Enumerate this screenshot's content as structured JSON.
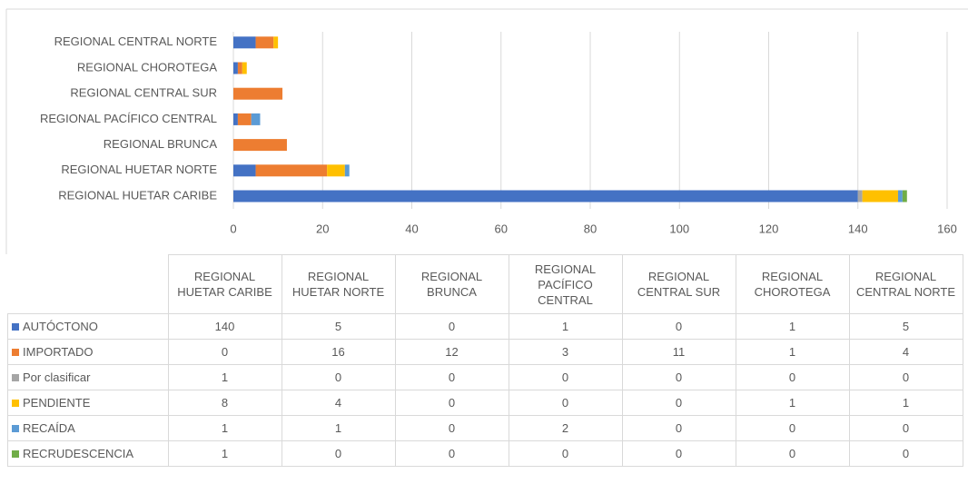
{
  "chart_data": {
    "type": "stacked_bar_horizontal",
    "categories": [
      "REGIONAL HUETAR CARIBE",
      "REGIONAL HUETAR NORTE",
      "REGIONAL BRUNCA",
      "REGIONAL PACÍFICO CENTRAL",
      "REGIONAL CENTRAL SUR",
      "REGIONAL CHOROTEGA",
      "REGIONAL CENTRAL NORTE"
    ],
    "series": [
      {
        "name": "AUTÓCTONO",
        "color": "#4472c4",
        "values": [
          140,
          5,
          0,
          1,
          0,
          1,
          5
        ]
      },
      {
        "name": "IMPORTADO",
        "color": "#ed7d31",
        "values": [
          0,
          16,
          12,
          3,
          11,
          1,
          4
        ]
      },
      {
        "name": "Por clasificar",
        "color": "#a5a5a5",
        "values": [
          1,
          0,
          0,
          0,
          0,
          0,
          0
        ]
      },
      {
        "name": "PENDIENTE",
        "color": "#ffc000",
        "values": [
          8,
          4,
          0,
          0,
          0,
          1,
          1
        ]
      },
      {
        "name": "RECAÍDA",
        "color": "#5b9bd5",
        "values": [
          1,
          1,
          0,
          2,
          0,
          0,
          0
        ]
      },
      {
        "name": "RECRUDESCENCIA",
        "color": "#70ad47",
        "values": [
          1,
          0,
          0,
          0,
          0,
          0,
          0
        ]
      }
    ],
    "xlim": [
      0,
      160
    ],
    "xticks": [
      0,
      20,
      40,
      60,
      80,
      100,
      120,
      140,
      160
    ],
    "grid": true,
    "data_table": true
  }
}
